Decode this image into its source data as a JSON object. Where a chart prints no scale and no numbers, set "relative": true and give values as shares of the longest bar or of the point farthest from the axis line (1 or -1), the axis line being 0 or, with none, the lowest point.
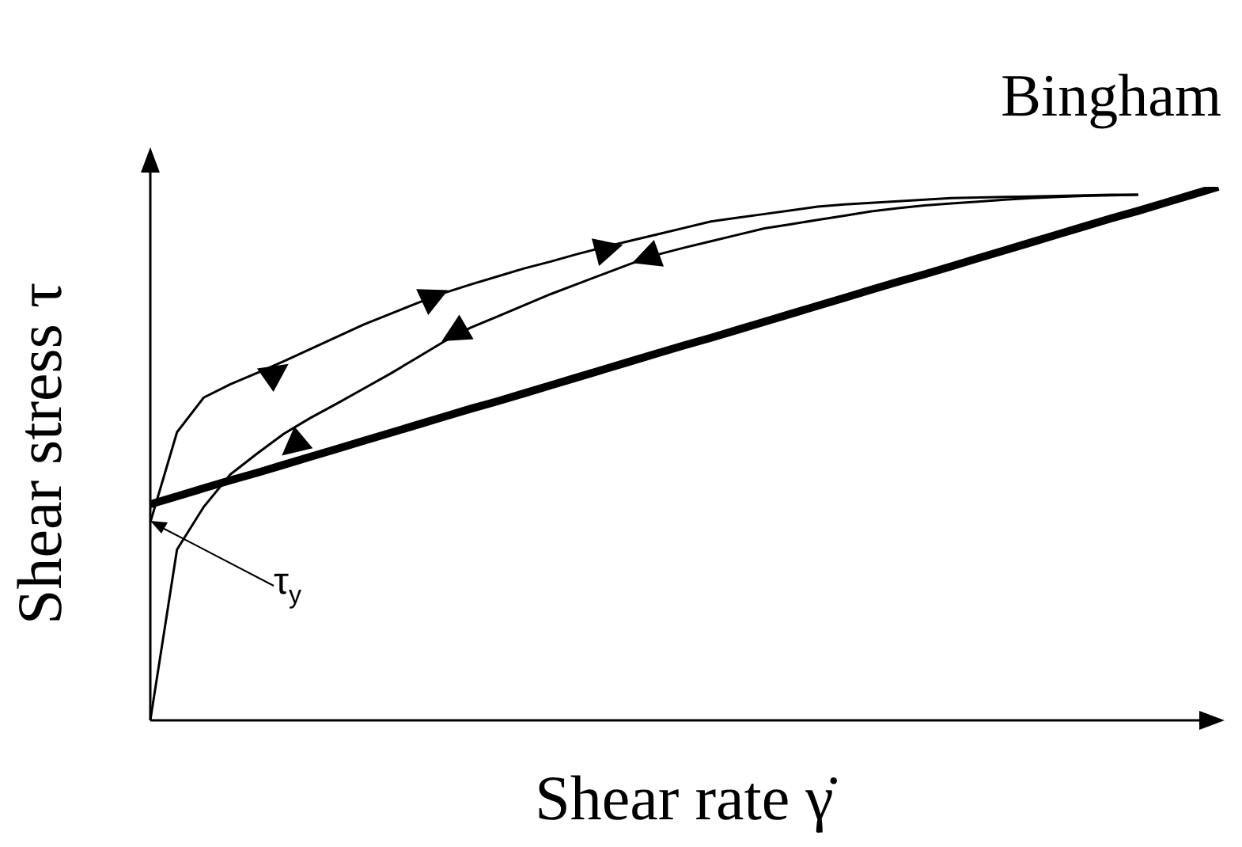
{
  "chart_data": {
    "type": "line",
    "relative": true,
    "xlabel": "Shear rate γ̇",
    "ylabel": "Shear stress τ",
    "marker": "none",
    "legend": false,
    "annotations": [
      "τ$_{y}$"
    ],
    "categories": [
      null,
      null,
      null,
      null,
      null,
      null,
      null,
      null,
      null,
      null,
      null,
      null,
      null,
      null,
      null,
      null,
      null,
      null,
      null,
      null,
      null,
      null,
      null,
      null,
      null,
      null,
      null,
      null,
      null,
      null,
      null,
      null,
      null,
      null,
      null,
      null,
      null,
      null,
      null,
      null,
      null
    ],
    "series": [
      {
        "name": "Bingham",
        "color": "#000000",
        "values": [
          0.405,
          0.42,
          0.435,
          0.45,
          0.464,
          0.479,
          0.494,
          0.509,
          0.524,
          0.539,
          0.554,
          0.569,
          0.584,
          0.598,
          0.613,
          0.628,
          0.643,
          0.658,
          0.673,
          0.688,
          0.703,
          0.717,
          0.732,
          0.747,
          0.762,
          0.777,
          0.792,
          0.807,
          0.822,
          0.836,
          0.851,
          0.866,
          0.881,
          0.896,
          0.911,
          0.926,
          0.941,
          0.955,
          0.97,
          0.985,
          1.0
        ]
      },
      {
        "color": "#000000",
        "values": [
          0.371,
          0.54,
          0.605,
          0.63,
          0.651,
          0.673,
          0.696,
          0.719,
          0.742,
          0.762,
          0.782,
          0.801,
          0.817,
          0.832,
          0.847,
          0.86,
          0.874,
          0.887,
          0.899,
          0.911,
          0.923,
          0.935,
          0.942,
          0.949,
          0.956,
          0.963,
          0.967,
          0.97,
          0.973,
          0.976,
          0.979,
          0.98,
          0.981,
          0.982,
          0.983,
          0.984,
          0.985,
          0.985,
          null,
          null,
          null
        ]
      },
      {
        "color": "#000000",
        "values": [
          0,
          0.32,
          0.4,
          0.461,
          0.5,
          0.537,
          0.567,
          0.594,
          0.622,
          0.65,
          0.68,
          0.71,
          0.736,
          0.757,
          0.778,
          0.799,
          0.818,
          0.837,
          0.856,
          0.873,
          0.886,
          0.898,
          0.91,
          0.922,
          0.93,
          0.938,
          0.946,
          0.954,
          0.96,
          0.965,
          0.969,
          0.972,
          0.976,
          0.979,
          0.981,
          0.983,
          0.984,
          0.985,
          null,
          null,
          null
        ]
      }
    ]
  }
}
